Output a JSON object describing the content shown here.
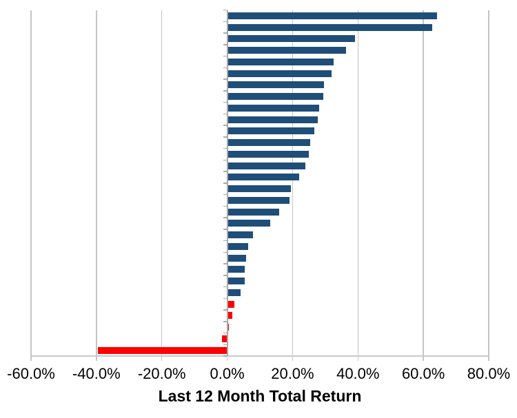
{
  "chart_data": {
    "type": "bar",
    "orientation": "horizontal",
    "title": "",
    "xlabel": "Last 12 Month Total Return",
    "ylabel": "",
    "unit": "%",
    "xlim": [
      -60,
      80
    ],
    "x_tick_values": [
      -60,
      -40,
      -20,
      0,
      20,
      40,
      60,
      80
    ],
    "x_tick_labels": [
      "-60.0%",
      "-40.0%",
      "-20.0%",
      "0.0%",
      "20.0%",
      "40.0%",
      "60.0%",
      "80.0%"
    ],
    "grid": "vertical-major-on",
    "legend": "none",
    "category_labels_shown": false,
    "num_bars": 30,
    "values": [
      64.1,
      62.7,
      39.1,
      36.4,
      32.5,
      32.0,
      29.7,
      29.3,
      28.1,
      27.8,
      26.7,
      25.3,
      25.0,
      23.9,
      22.0,
      19.5,
      19.0,
      15.9,
      13.1,
      7.8,
      6.4,
      5.7,
      5.4,
      5.3,
      4.2,
      2.3,
      1.5,
      0.5,
      -1.6,
      -39.6
    ],
    "bar_colors": [
      "#1F4E79",
      "#1F4E79",
      "#1F4E79",
      "#1F4E79",
      "#1F4E79",
      "#1F4E79",
      "#1F4E79",
      "#1F4E79",
      "#1F4E79",
      "#1F4E79",
      "#1F4E79",
      "#1F4E79",
      "#1F4E79",
      "#1F4E79",
      "#1F4E79",
      "#1F4E79",
      "#1F4E79",
      "#1F4E79",
      "#1F4E79",
      "#1F4E79",
      "#1F4E79",
      "#1F4E79",
      "#1F4E79",
      "#1F4E79",
      "#1F4E79",
      "#FF0000",
      "#FF0000",
      "#FF0000",
      "#FF0000",
      "#FF0000"
    ],
    "colors": {
      "positive_series": "#1F4E79",
      "highlight_series": "#FF0000",
      "gridline": "#C4C4C4",
      "axis": "#A9A9A9"
    }
  }
}
